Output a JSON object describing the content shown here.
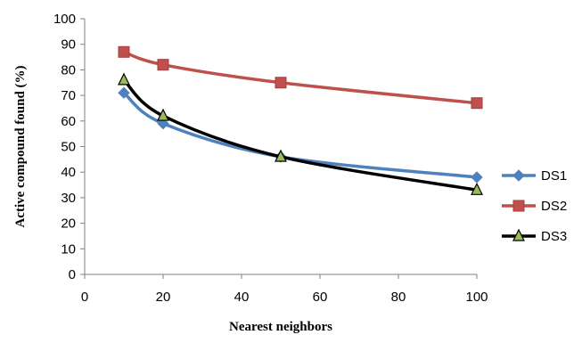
{
  "chart_data": {
    "type": "line",
    "xlabel": "Nearest neighbors",
    "ylabel": "Active compound found (%)",
    "xlim": [
      0,
      100
    ],
    "ylim": [
      0,
      100
    ],
    "x_ticks": [
      0,
      20,
      40,
      60,
      80,
      100
    ],
    "y_ticks": [
      0,
      10,
      20,
      30,
      40,
      50,
      60,
      70,
      80,
      90,
      100
    ],
    "grid": false,
    "legend_position": "right",
    "x": [
      10,
      20,
      50,
      100
    ],
    "series": [
      {
        "name": "DS1",
        "values": [
          71,
          59,
          46,
          38
        ],
        "color": "#4F81BD",
        "marker": "diamond",
        "marker_color": "#4F81BD"
      },
      {
        "name": "DS2",
        "values": [
          87,
          82,
          75,
          67
        ],
        "color": "#C0504D",
        "marker": "square",
        "marker_color": "#C0504D"
      },
      {
        "name": "DS3",
        "values": [
          76,
          62,
          46,
          33
        ],
        "color": "#000000",
        "marker": "triangle",
        "marker_color": "#9BBB59"
      }
    ]
  }
}
